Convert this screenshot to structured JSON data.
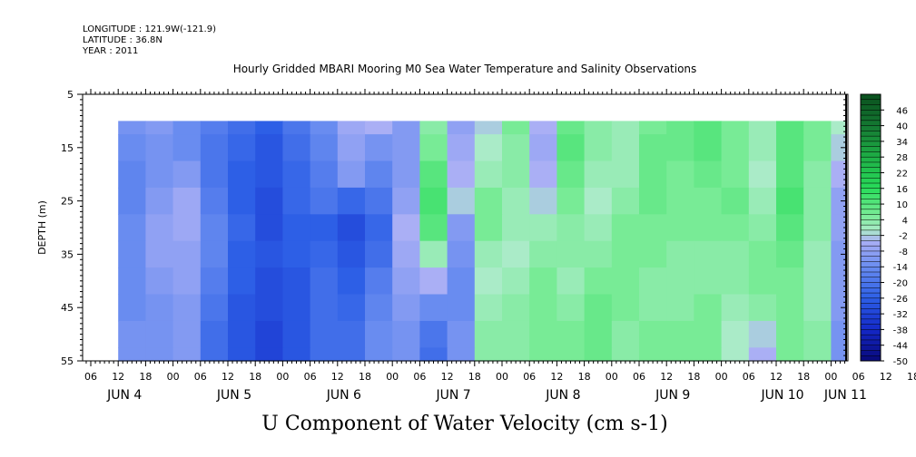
{
  "header": {
    "longitude": "LONGITUDE : 121.9W(-121.9)",
    "latitude": "LATITUDE : 36.8N",
    "year": "YEAR : 2011"
  },
  "chart_data": {
    "type": "heatmap",
    "title": "Hourly Gridded MBARI Mooring M0 Sea Water Temperature and Salinity Observations",
    "xlabel": "U Component of Water Velocity (cm s-1)",
    "ylabel": "DEPTH (m)",
    "ylim": [
      5,
      55
    ],
    "y_reversed": true,
    "y_ticks": [
      5,
      15,
      25,
      35,
      45,
      55
    ],
    "hour_ticks": [
      "06",
      "12",
      "18",
      "00",
      "06",
      "12",
      "18",
      "00",
      "06",
      "12",
      "18",
      "00",
      "06",
      "12",
      "18",
      "00",
      "06",
      "12",
      "18",
      "00",
      "06",
      "12",
      "18",
      "00",
      "06",
      "12",
      "18",
      "00",
      "06",
      "12",
      "18",
      "00"
    ],
    "day_labels": [
      "JUN 4",
      "JUN 5",
      "JUN 6",
      "JUN 7",
      "JUN 8",
      "JUN 9",
      "JUN 10",
      "JUN 11"
    ],
    "colorbar_labels": [
      "46",
      "40",
      "34",
      "28",
      "22",
      "16",
      "10",
      "4",
      "-2",
      "-8",
      "-14",
      "-20",
      "-26",
      "-32",
      "-38",
      "-44",
      "-50"
    ],
    "colorbar_range": [
      -50,
      52
    ],
    "depths": [
      10,
      15,
      20,
      25,
      30,
      35,
      40,
      45,
      50,
      55
    ],
    "times": [
      "JUN 4 12",
      "JUN 4 18",
      "JUN 5 00",
      "JUN 5 06",
      "JUN 5 12",
      "JUN 5 18",
      "JUN 6 00",
      "JUN 6 06",
      "JUN 6 12",
      "JUN 6 18",
      "JUN 7 00",
      "JUN 7 06",
      "JUN 7 12",
      "JUN 7 18",
      "JUN 8 00",
      "JUN 8 06",
      "JUN 8 12",
      "JUN 8 18",
      "JUN 9 00",
      "JUN 9 06",
      "JUN 9 12",
      "JUN 9 18",
      "JUN 10 00",
      "JUN 10 06",
      "JUN 10 12",
      "JUN 10 18",
      "JUN 11 00"
    ],
    "values": [
      [
        -12,
        -10,
        -14,
        -18,
        -22,
        -26,
        -20,
        -14,
        -6,
        -4,
        -10,
        4,
        -8,
        -2,
        6,
        -4,
        8,
        4,
        2,
        6,
        8,
        10,
        6,
        2,
        10,
        6,
        0
      ],
      [
        -14,
        -12,
        -14,
        -20,
        -24,
        -28,
        -22,
        -16,
        -8,
        -12,
        -10,
        6,
        -6,
        0,
        4,
        -6,
        10,
        4,
        2,
        8,
        8,
        10,
        6,
        2,
        10,
        6,
        -2
      ],
      [
        -16,
        -12,
        -10,
        -20,
        -26,
        -28,
        -24,
        -18,
        -10,
        -16,
        -10,
        10,
        -4,
        2,
        4,
        -4,
        8,
        2,
        2,
        8,
        6,
        8,
        6,
        0,
        10,
        4,
        -4
      ],
      [
        -16,
        -10,
        -6,
        -18,
        -26,
        -30,
        -24,
        -20,
        -24,
        -20,
        -8,
        12,
        -2,
        6,
        2,
        -2,
        6,
        0,
        4,
        8,
        6,
        6,
        8,
        2,
        12,
        4,
        -8
      ],
      [
        -14,
        -8,
        -6,
        -16,
        -24,
        -30,
        -26,
        -26,
        -30,
        -24,
        -4,
        10,
        -10,
        6,
        2,
        2,
        4,
        2,
        6,
        6,
        6,
        6,
        6,
        4,
        10,
        4,
        -8
      ],
      [
        -14,
        -8,
        -8,
        -16,
        -26,
        -28,
        -26,
        -24,
        -28,
        -22,
        -6,
        2,
        -12,
        2,
        0,
        4,
        4,
        4,
        6,
        6,
        4,
        4,
        4,
        6,
        8,
        2,
        -10
      ],
      [
        -14,
        -10,
        -8,
        -18,
        -26,
        -30,
        -28,
        -22,
        -26,
        -18,
        -8,
        -4,
        -14,
        0,
        2,
        6,
        2,
        6,
        6,
        4,
        4,
        4,
        4,
        6,
        6,
        2,
        -10
      ],
      [
        -14,
        -12,
        -10,
        -20,
        -28,
        -30,
        -28,
        -22,
        -24,
        -16,
        -10,
        -14,
        -14,
        2,
        4,
        6,
        4,
        8,
        6,
        4,
        4,
        6,
        2,
        4,
        6,
        2,
        -10
      ],
      [
        -12,
        -12,
        -10,
        -22,
        -28,
        -32,
        -28,
        -22,
        -22,
        -14,
        -12,
        -20,
        -12,
        4,
        4,
        6,
        6,
        8,
        4,
        6,
        6,
        6,
        0,
        -2,
        6,
        4,
        -12
      ],
      [
        -12,
        -12,
        -10,
        -22,
        -28,
        -32,
        -28,
        -22,
        -22,
        -14,
        -12,
        -22,
        -12,
        4,
        4,
        6,
        6,
        8,
        4,
        6,
        6,
        6,
        0,
        -4,
        6,
        4,
        -12
      ]
    ]
  }
}
